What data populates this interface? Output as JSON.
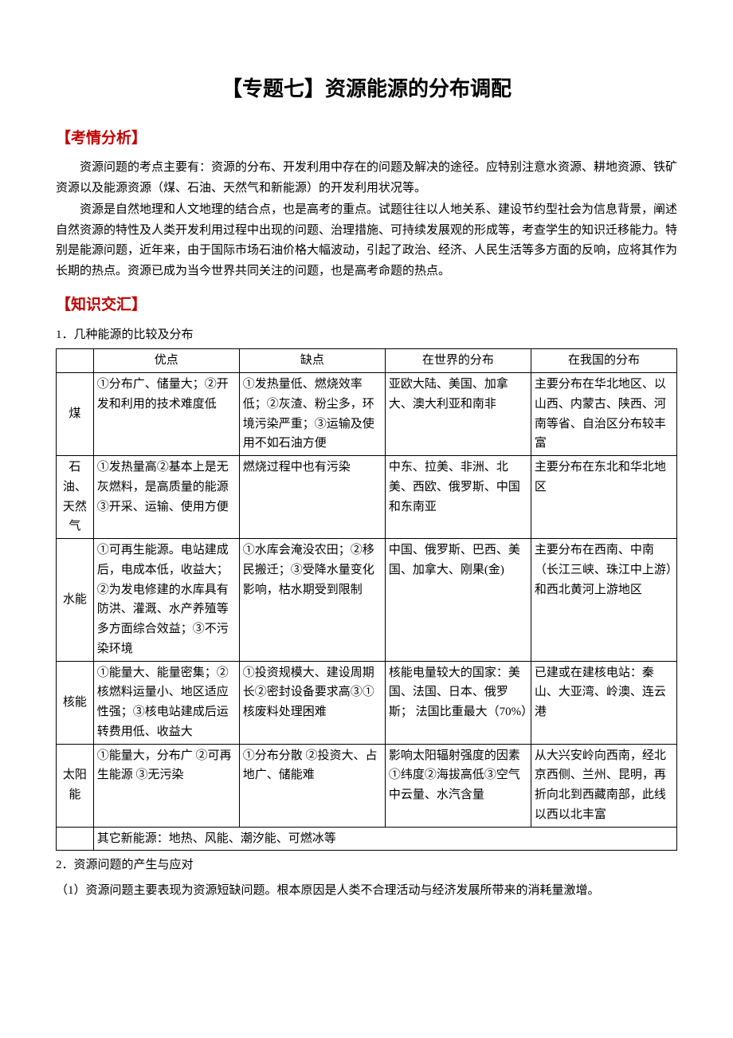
{
  "title": "【专题七】资源能源的分布调配",
  "sections": {
    "analysis": {
      "header": "【考情分析】",
      "p1": "资源问题的考点主要有：资源的分布、开发利用中存在的问题及解决的途径。应特别注意水资源、耕地资源、铁矿资源以及能源资源（煤、石油、天然气和新能源）的开发利用状况等。",
      "p2": "资源是自然地理和人文地理的结合点，也是高考的重点。试题往往以人地关系、建设节约型社会为信息背景，阐述自然资源的特性及人类开发利用过程中出现的问题、治理措施、可持续发展观的形成等，考查学生的知识迁移能力。特别是能源问题，近年来，由于国际市场石油价格大幅波动，引起了政治、经济、人民生活等多方面的反响，应将其作为长期的热点。资源已成为当今世界共同关注的问题，也是高考命题的热点。"
    },
    "knowledge": {
      "header": "【知识交汇】",
      "sub1": "1．几种能源的比较及分布",
      "sub2": "2．资源问题的产生与应对",
      "p_after": "（1）资源问题主要表现为资源短缺问题。根本原因是人类不合理活动与经济发展所带来的消耗量激增。"
    }
  },
  "table": {
    "headers": [
      "",
      "优点",
      "缺点",
      "在世界的分布",
      "在我国的分布"
    ],
    "rows": [
      {
        "name": "煤",
        "adv": "①分布广、储量大；②开发和利用的技术难度低",
        "dis": "①发热量低、燃烧效率低；②灰渣、粉尘多，环境污染严重；③运输及使用不如石油方便",
        "world": "亚欧大陆、美国、加拿大、澳大利亚和南非",
        "china": "主要分布在华北地区、以山西、内蒙古、陕西、河南等省、自治区分布较丰富"
      },
      {
        "name": "石油、天然气",
        "adv": "①发热量高②基本上是无灰燃料，是高质量的能源③开采、运输、使用方便",
        "dis": "燃烧过程中也有污染",
        "world": "中东、拉美、非洲、北美、西欧、俄罗斯、中国和东南亚",
        "china": "主要分布在东北和华北地区"
      },
      {
        "name": "水能",
        "adv": "①可再生能源。电站建成后，电成本低，收益大；②为发电修建的水库具有防洪、灌溉、水产养殖等多方面综合效益；③不污染环境",
        "dis": "①水库会淹没农田；②移民搬迁；③受降水量变化影响，枯水期受到限制",
        "world": "中国、俄罗斯、巴西、美国、加拿大、刚果(金)",
        "china": "主要分布在西南、中南（长江三峡、珠江中上游）和西北黄河上游地区"
      },
      {
        "name": "核能",
        "adv": "①能量大、能量密集；②核燃料运量小、地区适应性强；③核电站建成后运转费用低、收益大",
        "dis": "①投资规模大、建设周期长②密封设备要求高③①核废料处理困难",
        "world": "核能电量较大的国家：美国、法国、日本、俄罗斯；\n法国比重最大（70%）",
        "china": "已建或在建核电站：秦山、大亚湾、岭澳、连云港"
      },
      {
        "name": "太阳能",
        "adv": "①能量大，分布广\n②可再生能源\n③无污染",
        "dis": "①分布分散\n②投资大、占地广、储能难",
        "world": "影响太阳辐射强度的因素①纬度②海拔高低③空气中云量、水汽含量",
        "china": "从大兴安岭向西南，经北京西侧、兰州、昆明，再折向北到西藏南部，此线以西以北丰富"
      }
    ],
    "footnote": "其它新能源：地热、风能、潮汐能、可燃冰等"
  },
  "styling": {
    "title_fontsize": 26,
    "title_color": "#000000",
    "section_header_color": "#c00000",
    "section_header_fontsize": 19,
    "body_fontsize": 15,
    "table_border_color": "#000000",
    "background_color": "#ffffff",
    "font_family": "SimSun"
  }
}
